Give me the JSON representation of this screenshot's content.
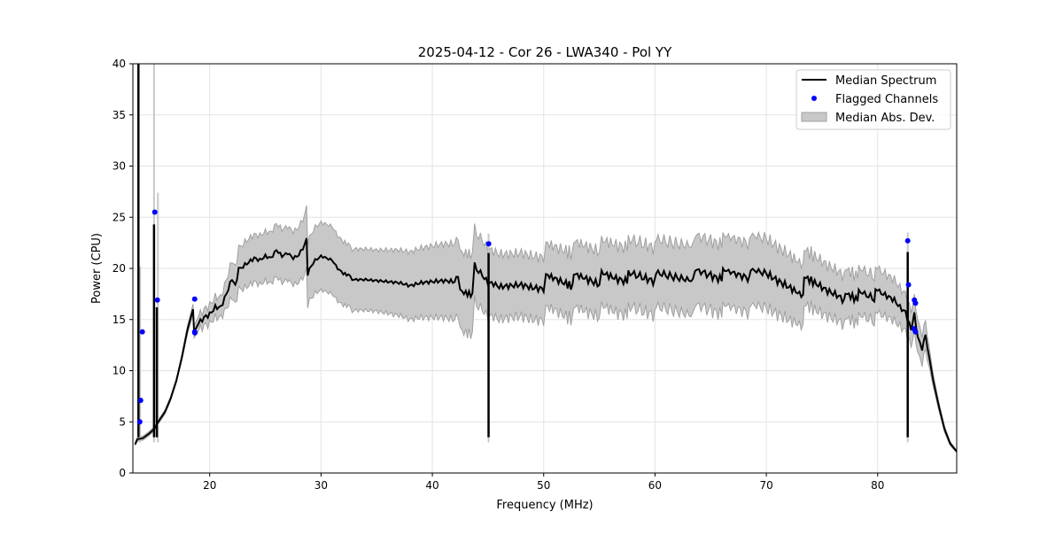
{
  "chart_data": {
    "type": "line",
    "title": "2025-04-12 - Cor 26 - LWA340 - Pol YY",
    "xlabel": "Frequency (MHz)",
    "ylabel": "Power (CPU)",
    "xlim": [
      13.1,
      87.1
    ],
    "ylim": [
      0,
      40
    ],
    "xticks": [
      20,
      30,
      40,
      50,
      60,
      70,
      80
    ],
    "yticks": [
      0,
      5,
      10,
      15,
      20,
      25,
      30,
      35,
      40
    ],
    "grid": true,
    "legend": {
      "placement": "top-right",
      "entries": [
        "Median Spectrum",
        "Flagged Channels",
        "Median Abs. Dev."
      ]
    },
    "colors": {
      "median": "#000000",
      "flagged": "#0000ff",
      "mad": "#c8c8c8",
      "mad_edge": "#a0a0a0"
    },
    "median_spectrum_points": [
      [
        13.3,
        2.8,
        0.1
      ],
      [
        13.5,
        3.3,
        0.2
      ],
      [
        14,
        3.4,
        0.2
      ],
      [
        14.5,
        3.8,
        0.2
      ],
      [
        15,
        4.3,
        0.2
      ],
      [
        15.5,
        5.2,
        0.2
      ],
      [
        16,
        6.0,
        0.2
      ],
      [
        16.5,
        7.3,
        0.2
      ],
      [
        17,
        9.0,
        0.2
      ],
      [
        17.5,
        11.3,
        0.3
      ],
      [
        18,
        14.0,
        0.4
      ],
      [
        18.5,
        16.0,
        0.5
      ],
      [
        18.6,
        13.8,
        0.6
      ],
      [
        19,
        14.6,
        0.7
      ],
      [
        19.5,
        15.2,
        0.8
      ],
      [
        20,
        15.5,
        0.9
      ],
      [
        20.5,
        16.2,
        1.0
      ],
      [
        21,
        16.2,
        1.0
      ],
      [
        21.5,
        17.5,
        1.4
      ],
      [
        22,
        19.0,
        1.8
      ],
      [
        22.3,
        18.3,
        1.8
      ],
      [
        22.6,
        19.8,
        2.0
      ],
      [
        23,
        20.2,
        2.2
      ],
      [
        23.5,
        20.6,
        2.3
      ],
      [
        24,
        21.0,
        2.3
      ],
      [
        24.5,
        20.8,
        2.4
      ],
      [
        25,
        21.2,
        2.4
      ],
      [
        25.5,
        21.0,
        2.5
      ],
      [
        26,
        21.8,
        2.6
      ],
      [
        26.5,
        21.2,
        2.6
      ],
      [
        27,
        21.5,
        2.6
      ],
      [
        27.5,
        21.0,
        2.6
      ],
      [
        28,
        21.3,
        2.7
      ],
      [
        28.7,
        22.7,
        3.0
      ],
      [
        28.8,
        19.5,
        3.0
      ],
      [
        29.3,
        20.6,
        3.2
      ],
      [
        30,
        21.2,
        3.3
      ],
      [
        31,
        20.8,
        3.3
      ],
      [
        31.5,
        20.0,
        3.2
      ],
      [
        32,
        19.5,
        3.1
      ],
      [
        32.6,
        19.3,
        3.0
      ],
      [
        33,
        18.9,
        3.0
      ],
      [
        34,
        18.9,
        3.0
      ],
      [
        35,
        18.8,
        3.0
      ],
      [
        36,
        18.7,
        3.1
      ],
      [
        37,
        18.6,
        3.2
      ],
      [
        38,
        18.3,
        3.3
      ],
      [
        39,
        18.6,
        3.4
      ],
      [
        40,
        18.7,
        3.5
      ],
      [
        41,
        18.8,
        3.6
      ],
      [
        42,
        18.7,
        3.7
      ],
      [
        42.3,
        19.4,
        3.8
      ],
      [
        42.5,
        17.8,
        3.8
      ],
      [
        43,
        17.6,
        3.9
      ],
      [
        43.6,
        17.4,
        3.9
      ],
      [
        43.8,
        20.2,
        3.5
      ],
      [
        44.5,
        19.3,
        3.4
      ],
      [
        45,
        18.6,
        3.3
      ],
      [
        45.5,
        18.5,
        3.2
      ],
      [
        46,
        18.2,
        3.2
      ],
      [
        47,
        18.3,
        3.1
      ],
      [
        48,
        18.4,
        3.1
      ],
      [
        49,
        18.1,
        3.1
      ],
      [
        50,
        18.0,
        3.1
      ],
      [
        50.2,
        19.4,
        3.1
      ],
      [
        51,
        19.0,
        3.1
      ],
      [
        52,
        18.5,
        3.2
      ],
      [
        52.6,
        18.2,
        3.2
      ],
      [
        52.7,
        19.5,
        3.2
      ],
      [
        54,
        18.9,
        3.2
      ],
      [
        55,
        18.4,
        3.2
      ],
      [
        55.2,
        19.6,
        3.2
      ],
      [
        56.5,
        19.0,
        3.3
      ],
      [
        57.5,
        18.7,
        3.3
      ],
      [
        57.6,
        19.6,
        3.3
      ],
      [
        59,
        19.1,
        3.3
      ],
      [
        60,
        18.7,
        3.3
      ],
      [
        60.1,
        19.6,
        3.3
      ],
      [
        61.5,
        19.2,
        3.3
      ],
      [
        63.4,
        18.8,
        3.4
      ],
      [
        63.6,
        19.9,
        3.4
      ],
      [
        65,
        19.3,
        3.4
      ],
      [
        66,
        18.9,
        3.4
      ],
      [
        66.1,
        19.9,
        3.4
      ],
      [
        68.5,
        19.0,
        3.4
      ],
      [
        68.6,
        19.9,
        3.4
      ],
      [
        70,
        19.5,
        3.4
      ],
      [
        71,
        18.8,
        3.3
      ],
      [
        72,
        18.2,
        3.2
      ],
      [
        73.3,
        17.3,
        3.0
      ],
      [
        73.4,
        19.2,
        2.7
      ],
      [
        74.5,
        18.5,
        2.6
      ],
      [
        75.5,
        17.8,
        2.5
      ],
      [
        76.5,
        17.3,
        2.4
      ],
      [
        77,
        16.8,
        2.4
      ],
      [
        77.1,
        17.6,
        2.4
      ],
      [
        78.2,
        16.9,
        2.3
      ],
      [
        78.3,
        17.8,
        2.3
      ],
      [
        79.7,
        17.0,
        2.2
      ],
      [
        79.8,
        18.0,
        2.2
      ],
      [
        80.5,
        17.5,
        2.1
      ],
      [
        81.5,
        16.9,
        2.0
      ],
      [
        82,
        16.2,
        1.9
      ],
      [
        82.5,
        15.7,
        1.8
      ],
      [
        83,
        14.0,
        1.7
      ],
      [
        83.3,
        15.6,
        1.7
      ],
      [
        83.6,
        13.2,
        1.6
      ],
      [
        84,
        12.2,
        1.4
      ],
      [
        84.3,
        13.5,
        1.4
      ],
      [
        84.6,
        11.5,
        1.0
      ],
      [
        85,
        9.0,
        0.6
      ],
      [
        85.5,
        6.5,
        0.4
      ],
      [
        86,
        4.3,
        0.3
      ],
      [
        86.5,
        2.9,
        0.2
      ],
      [
        87.1,
        2.1,
        0.1
      ]
    ],
    "median_spikes": [
      {
        "x": 13.6,
        "y": 40.5
      },
      {
        "x": 15.0,
        "y": 24.3
      },
      {
        "x": 15.25,
        "y": 16.2
      },
      {
        "x": 45.05,
        "y": 21.5
      },
      {
        "x": 82.7,
        "y": 21.6
      }
    ],
    "mad_spikes": [
      {
        "x": 13.75,
        "y": 20.2
      },
      {
        "x": 15.0,
        "y": 40
      },
      {
        "x": 15.35,
        "y": 27.4
      },
      {
        "x": 45.05,
        "y": 23.4
      },
      {
        "x": 82.7,
        "y": 23.5
      }
    ],
    "flagged_channels": [
      [
        13.72,
        5.0
      ],
      [
        13.8,
        7.1
      ],
      [
        13.95,
        13.8
      ],
      [
        15.07,
        25.5
      ],
      [
        15.3,
        16.9
      ],
      [
        18.65,
        17.0
      ],
      [
        18.65,
        13.8
      ],
      [
        18.67,
        13.7
      ],
      [
        45.06,
        22.4
      ],
      [
        82.7,
        22.7
      ],
      [
        82.77,
        18.4
      ],
      [
        83.3,
        16.9
      ],
      [
        83.4,
        16.6
      ],
      [
        83.25,
        14.1
      ],
      [
        83.4,
        13.8
      ]
    ]
  }
}
